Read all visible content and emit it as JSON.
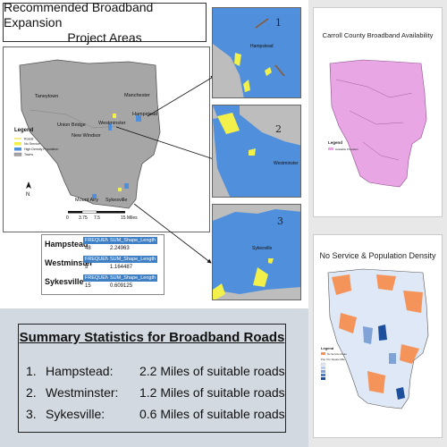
{
  "poster": {
    "title_line1": "Recommended Broadband Expansion",
    "title_line2": "Project Areas"
  },
  "main_map": {
    "legend_title": "Legend",
    "legend_items": [
      "Roads",
      "No Service",
      "High Density Population",
      "Towns"
    ],
    "towns": [
      "Taneytown",
      "Manchester",
      "Hampstead",
      "Westminster",
      "Union Bridge",
      "New Windsor",
      "Mount Airy",
      "Sykesville"
    ],
    "north_label": "N",
    "scale_labels": [
      "0",
      "3.75",
      "7.5",
      "15 Miles"
    ],
    "colors": {
      "county": "#a6a6a6",
      "no_service": "#f2f04a",
      "high_density": "#4f8fdc",
      "roads": "#f0e040"
    }
  },
  "zoom_panels": [
    {
      "number": "1",
      "label": "Hampstead"
    },
    {
      "number": "2",
      "label": "Westminster"
    },
    {
      "number": "3",
      "label": "Sykesville"
    }
  ],
  "stats_table": {
    "col1": "FREQUENCY",
    "col2": "SUM_Shape_Length",
    "rows": [
      {
        "town": "Hampstead",
        "frequency": "48",
        "sum_shape_length": "2.24963"
      },
      {
        "town": "Westminster",
        "frequency": "5",
        "sum_shape_length": "1.164487"
      },
      {
        "town": "Sykesville",
        "frequency": "15",
        "sum_shape_length": "0.609125"
      }
    ]
  },
  "summary": {
    "title": "Summary Statistics for Broadband Roads",
    "items": [
      {
        "num": "1.",
        "town": "Hampstead:",
        "text": "2.2 Miles of suitable roads"
      },
      {
        "num": "2.",
        "town": "Westminster:",
        "text": "1.2 Miles of suitable roads"
      },
      {
        "num": "3.",
        "town": "Sykesville:",
        "text": "0.6 Miles of suitable roads"
      }
    ]
  },
  "availability_map": {
    "title": "Carroll County Broadband Availability",
    "legend_title": "Legend",
    "legend_item": "Available Providers",
    "color": "#e9a6e4"
  },
  "density_map": {
    "title": "No Service & Population Density",
    "legend_title": "Legend",
    "legend_items": [
      "No Service Areas",
      "Pop. Per Square Mile"
    ],
    "colors": {
      "no_service": "#f4945a",
      "density_low": "#dfe8f6",
      "density_high": "#1e4f9c"
    }
  }
}
